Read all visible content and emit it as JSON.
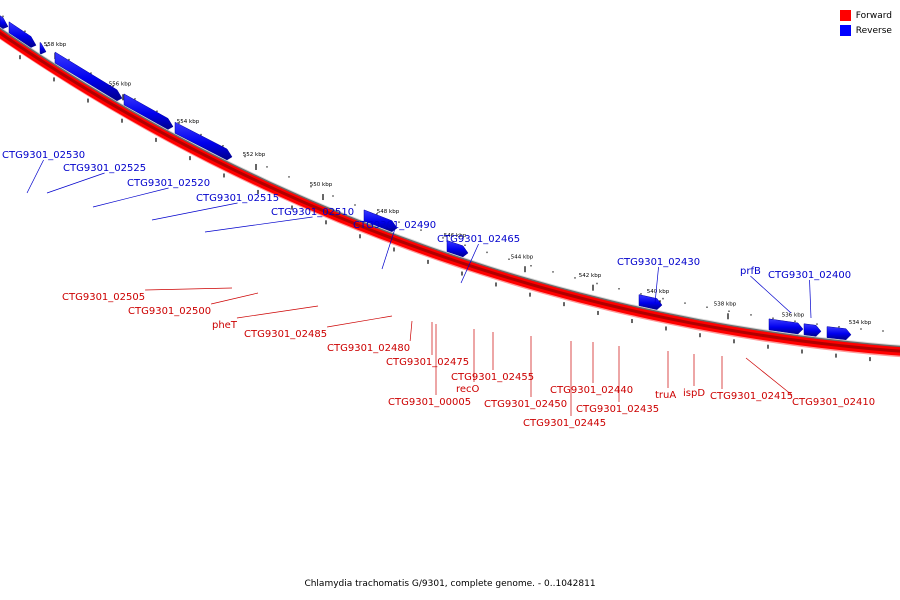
{
  "legend": {
    "forward_label": "Forward",
    "reverse_label": "Reverse",
    "forward_color": "#ff0000",
    "reverse_color": "#0000ff"
  },
  "caption": "Chlamydia trachomatis G/9301, complete genome. - 0..1042811",
  "scale_labels": [
    "558 kbp",
    "556 kbp",
    "554 kbp",
    "552 kbp",
    "550 kbp",
    "548 kbp",
    "546 kbp",
    "544 kbp",
    "542 kbp",
    "540 kbp",
    "538 kbp",
    "536 kbp",
    "534 kbp"
  ],
  "reverse_genes": [
    "CTG9301_02530",
    "CTG9301_02525",
    "CTG9301_02520",
    "CTG9301_02515",
    "CTG9301_02510",
    "CTG9301_02490",
    "CTG9301_02465",
    "CTG9301_02430",
    "prfB",
    "CTG9301_02400"
  ],
  "forward_genes": [
    "CTG9301_02505",
    "CTG9301_02500",
    "pheT",
    "CTG9301_02485",
    "CTG9301_02480",
    "CTG9301_02475",
    "CTG9301_00005",
    "recO",
    "CTG9301_02455",
    "CTG9301_02450",
    "CTG9301_02445",
    "CTG9301_02440",
    "CTG9301_02435",
    "truA",
    "ispD",
    "CTG9301_02415",
    "CTG9301_02410"
  ]
}
